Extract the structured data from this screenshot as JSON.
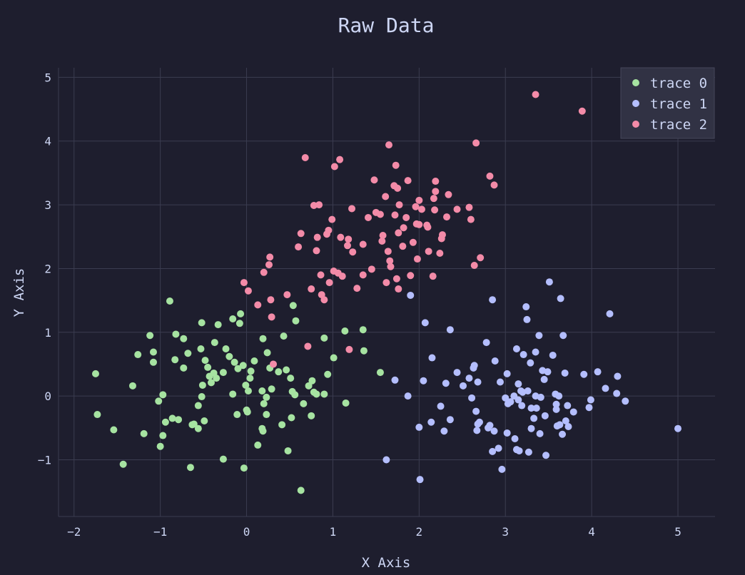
{
  "chart_data": {
    "type": "scatter",
    "title": "Raw Data",
    "xlabel": "X Axis",
    "ylabel": "Y Axis",
    "xlim": [
      -2.18,
      5.43
    ],
    "ylim": [
      -1.89,
      5.15
    ],
    "xticks": [
      -2,
      -1,
      0,
      1,
      2,
      3,
      4,
      5
    ],
    "yticks": [
      -1,
      0,
      1,
      2,
      3,
      4,
      5
    ],
    "xtick_labels": [
      "−2",
      "−1",
      "0",
      "1",
      "2",
      "3",
      "4",
      "5"
    ],
    "ytick_labels": [
      "−1",
      "0",
      "1",
      "2",
      "3",
      "4",
      "5"
    ],
    "grid": true,
    "legend_position": "top-right",
    "background": "#1e1e2e",
    "series": [
      {
        "name": "trace 0",
        "color": "#a6e3a1",
        "points": [
          [
            -1.75,
            0.35
          ],
          [
            -1.73,
            -0.29
          ],
          [
            -1.54,
            -0.53
          ],
          [
            -1.43,
            -1.07
          ],
          [
            -1.32,
            0.16
          ],
          [
            -1.26,
            0.65
          ],
          [
            -1.19,
            -0.59
          ],
          [
            -1.12,
            0.95
          ],
          [
            -1.08,
            0.69
          ],
          [
            -1.08,
            0.53
          ],
          [
            -1.02,
            -0.08
          ],
          [
            -0.97,
            0.02
          ],
          [
            -1.0,
            -0.79
          ],
          [
            -0.97,
            -0.62
          ],
          [
            -0.94,
            -0.41
          ],
          [
            -0.89,
            1.49
          ],
          [
            -0.86,
            -0.35
          ],
          [
            -0.83,
            0.57
          ],
          [
            -0.82,
            0.97
          ],
          [
            -0.79,
            -0.37
          ],
          [
            -0.73,
            0.9
          ],
          [
            -0.73,
            0.44
          ],
          [
            -0.68,
            0.67
          ],
          [
            -0.65,
            -1.12
          ],
          [
            -0.63,
            -0.45
          ],
          [
            -0.61,
            -0.44
          ],
          [
            -0.56,
            -0.15
          ],
          [
            -0.56,
            -0.51
          ],
          [
            -0.53,
            0.74
          ],
          [
            -0.52,
            -0.01
          ],
          [
            -0.51,
            0.17
          ],
          [
            -0.49,
            -0.39
          ],
          [
            -0.48,
            0.56
          ],
          [
            -0.45,
            0.45
          ],
          [
            -0.43,
            0.31
          ],
          [
            -0.41,
            0.21
          ],
          [
            -0.38,
            0.36
          ],
          [
            -0.37,
            0.84
          ],
          [
            -0.35,
            0.28
          ],
          [
            -0.33,
            1.12
          ],
          [
            -0.52,
            1.15
          ],
          [
            -0.27,
            -0.99
          ],
          [
            -0.27,
            0.37
          ],
          [
            -0.24,
            0.74
          ],
          [
            -0.2,
            0.62
          ],
          [
            -0.16,
            0.03
          ],
          [
            -0.16,
            1.21
          ],
          [
            -0.14,
            0.53
          ],
          [
            -0.11,
            -0.29
          ],
          [
            -0.1,
            0.43
          ],
          [
            -0.08,
            1.14
          ],
          [
            -0.07,
            1.29
          ],
          [
            -0.04,
            0.48
          ],
          [
            -0.03,
            -1.13
          ],
          [
            -0.01,
            0.17
          ],
          [
            0.0,
            -0.22
          ],
          [
            0.01,
            -0.25
          ],
          [
            0.04,
            0.28
          ],
          [
            0.02,
            0.08
          ],
          [
            0.05,
            0.39
          ],
          [
            0.09,
            0.55
          ],
          [
            0.13,
            -0.77
          ],
          [
            0.18,
            0.08
          ],
          [
            0.19,
            0.9
          ],
          [
            0.2,
            -0.12
          ],
          [
            0.18,
            -0.51
          ],
          [
            0.19,
            -0.55
          ],
          [
            0.23,
            -0.02
          ],
          [
            0.23,
            -0.29
          ],
          [
            0.24,
            0.68
          ],
          [
            0.27,
            0.44
          ],
          [
            0.29,
            0.11
          ],
          [
            0.37,
            0.38
          ],
          [
            0.41,
            -0.45
          ],
          [
            0.43,
            0.94
          ],
          [
            0.46,
            0.41
          ],
          [
            0.48,
            -0.86
          ],
          [
            0.51,
            0.28
          ],
          [
            0.52,
            -0.34
          ],
          [
            0.53,
            0.07
          ],
          [
            0.54,
            1.42
          ],
          [
            0.56,
            0.02
          ],
          [
            0.57,
            1.18
          ],
          [
            0.66,
            -0.12
          ],
          [
            0.63,
            -1.48
          ],
          [
            0.72,
            0.16
          ],
          [
            0.75,
            -0.31
          ],
          [
            0.76,
            0.24
          ],
          [
            0.78,
            0.06
          ],
          [
            0.81,
            0.03
          ],
          [
            0.9,
            0.03
          ],
          [
            0.9,
            0.91
          ],
          [
            0.94,
            0.34
          ],
          [
            1.01,
            0.6
          ],
          [
            1.14,
            1.02
          ],
          [
            1.15,
            -0.11
          ],
          [
            1.35,
            1.04
          ],
          [
            1.36,
            0.71
          ],
          [
            1.55,
            0.37
          ]
        ]
      },
      {
        "name": "trace 1",
        "color": "#b4befe",
        "points": [
          [
            1.9,
            1.58
          ],
          [
            2.07,
            1.15
          ],
          [
            1.72,
            0.25
          ],
          [
            1.87,
            0.0
          ],
          [
            1.62,
            -1.0
          ],
          [
            2.01,
            -1.31
          ],
          [
            2.0,
            -0.49
          ],
          [
            2.05,
            0.24
          ],
          [
            2.14,
            -0.41
          ],
          [
            2.15,
            0.6
          ],
          [
            2.25,
            -0.16
          ],
          [
            2.29,
            -0.55
          ],
          [
            2.31,
            0.2
          ],
          [
            2.36,
            1.04
          ],
          [
            2.36,
            -0.37
          ],
          [
            2.44,
            0.37
          ],
          [
            2.51,
            0.16
          ],
          [
            2.58,
            0.28
          ],
          [
            2.61,
            -0.03
          ],
          [
            2.63,
            0.44
          ],
          [
            2.64,
            0.48
          ],
          [
            2.66,
            -0.24
          ],
          [
            2.67,
            -0.54
          ],
          [
            2.68,
            -0.44
          ],
          [
            2.68,
            0.22
          ],
          [
            2.7,
            -0.41
          ],
          [
            2.78,
            0.84
          ],
          [
            2.8,
            -0.5
          ],
          [
            2.82,
            -0.46
          ],
          [
            2.85,
            -0.87
          ],
          [
            2.85,
            1.51
          ],
          [
            2.88,
            0.55
          ],
          [
            2.87,
            -0.55
          ],
          [
            2.92,
            -0.82
          ],
          [
            2.94,
            0.22
          ],
          [
            2.96,
            -1.15
          ],
          [
            3.0,
            -0.03
          ],
          [
            3.02,
            0.35
          ],
          [
            3.02,
            -0.58
          ],
          [
            3.03,
            -0.12
          ],
          [
            3.06,
            -0.09
          ],
          [
            3.1,
            0.0
          ],
          [
            3.11,
            -0.67
          ],
          [
            3.13,
            0.74
          ],
          [
            3.13,
            -0.84
          ],
          [
            3.15,
            0.19
          ],
          [
            3.15,
            -0.06
          ],
          [
            3.18,
            0.08
          ],
          [
            3.2,
            0.06
          ],
          [
            3.19,
            -0.15
          ],
          [
            3.21,
            0.65
          ],
          [
            3.24,
            1.4
          ],
          [
            3.25,
            1.2
          ],
          [
            3.26,
            0.08
          ],
          [
            3.29,
            0.52
          ],
          [
            3.3,
            -0.19
          ],
          [
            3.3,
            -0.51
          ],
          [
            3.33,
            -0.35
          ],
          [
            3.35,
            0.0
          ],
          [
            3.35,
            0.69
          ],
          [
            3.36,
            -0.19
          ],
          [
            3.39,
            0.95
          ],
          [
            3.41,
            -0.02
          ],
          [
            3.43,
            0.4
          ],
          [
            3.45,
            0.26
          ],
          [
            3.46,
            -0.31
          ],
          [
            3.47,
            -0.93
          ],
          [
            3.49,
            0.38
          ],
          [
            3.51,
            1.79
          ],
          [
            3.55,
            0.64
          ],
          [
            3.58,
            0.03
          ],
          [
            3.59,
            -0.21
          ],
          [
            3.59,
            -0.13
          ],
          [
            3.6,
            -0.47
          ],
          [
            3.62,
            0.0
          ],
          [
            3.63,
            -0.45
          ],
          [
            3.64,
            1.53
          ],
          [
            3.66,
            -0.6
          ],
          [
            3.67,
            0.95
          ],
          [
            3.69,
            0.36
          ],
          [
            3.7,
            -0.39
          ],
          [
            3.72,
            -0.15
          ],
          [
            3.73,
            -0.48
          ],
          [
            3.79,
            -0.25
          ],
          [
            3.91,
            0.34
          ],
          [
            3.97,
            -0.18
          ],
          [
            3.99,
            -0.06
          ],
          [
            4.07,
            0.38
          ],
          [
            4.16,
            0.12
          ],
          [
            4.21,
            1.29
          ],
          [
            4.29,
            0.04
          ],
          [
            4.3,
            0.31
          ],
          [
            4.39,
            -0.08
          ],
          [
            5.0,
            -0.51
          ],
          [
            3.4,
            -0.59
          ],
          [
            3.27,
            -0.88
          ],
          [
            3.16,
            -0.86
          ]
        ]
      },
      {
        "name": "trace 2",
        "color": "#f38ba8",
        "points": [
          [
            -0.03,
            1.78
          ],
          [
            0.02,
            1.65
          ],
          [
            0.13,
            1.43
          ],
          [
            0.2,
            1.94
          ],
          [
            0.26,
            2.06
          ],
          [
            0.27,
            2.18
          ],
          [
            0.28,
            1.51
          ],
          [
            0.29,
            1.24
          ],
          [
            0.31,
            0.5
          ],
          [
            0.47,
            1.59
          ],
          [
            0.6,
            2.34
          ],
          [
            0.63,
            2.55
          ],
          [
            0.68,
            3.74
          ],
          [
            0.71,
            0.78
          ],
          [
            0.75,
            1.68
          ],
          [
            0.78,
            2.99
          ],
          [
            0.81,
            2.28
          ],
          [
            0.82,
            2.49
          ],
          [
            0.84,
            3.0
          ],
          [
            0.86,
            1.9
          ],
          [
            0.87,
            1.59
          ],
          [
            0.9,
            1.51
          ],
          [
            0.93,
            2.54
          ],
          [
            0.95,
            2.6
          ],
          [
            0.96,
            1.78
          ],
          [
            0.99,
            2.77
          ],
          [
            1.01,
            1.96
          ],
          [
            1.02,
            3.6
          ],
          [
            1.06,
            1.93
          ],
          [
            1.08,
            3.71
          ],
          [
            1.09,
            2.49
          ],
          [
            1.11,
            1.88
          ],
          [
            1.17,
            2.36
          ],
          [
            1.18,
            2.46
          ],
          [
            1.19,
            0.73
          ],
          [
            1.22,
            2.94
          ],
          [
            1.23,
            2.26
          ],
          [
            1.28,
            1.69
          ],
          [
            1.35,
            1.9
          ],
          [
            1.41,
            2.8
          ],
          [
            1.45,
            1.99
          ],
          [
            1.48,
            3.39
          ],
          [
            1.5,
            2.88
          ],
          [
            1.55,
            2.85
          ],
          [
            1.61,
            3.13
          ],
          [
            1.62,
            1.78
          ],
          [
            1.66,
            2.12
          ],
          [
            1.67,
            2.03
          ],
          [
            1.65,
            3.94
          ],
          [
            1.73,
            3.62
          ],
          [
            1.71,
            3.3
          ],
          [
            1.72,
            2.84
          ],
          [
            1.74,
            1.84
          ],
          [
            1.75,
            3.26
          ],
          [
            1.76,
            1.68
          ],
          [
            1.76,
            2.56
          ],
          [
            1.77,
            3.0
          ],
          [
            1.81,
            2.35
          ],
          [
            1.82,
            2.64
          ],
          [
            1.85,
            2.8
          ],
          [
            1.87,
            3.38
          ],
          [
            1.9,
            1.89
          ],
          [
            1.93,
            2.41
          ],
          [
            1.97,
            2.7
          ],
          [
            1.98,
            2.15
          ],
          [
            2.0,
            3.07
          ],
          [
            2.0,
            2.69
          ],
          [
            2.03,
            2.93
          ],
          [
            2.09,
            2.68
          ],
          [
            2.11,
            2.27
          ],
          [
            2.16,
            1.88
          ],
          [
            2.18,
            2.92
          ],
          [
            2.19,
            3.37
          ],
          [
            2.19,
            3.21
          ],
          [
            2.24,
            2.24
          ],
          [
            2.26,
            2.47
          ],
          [
            2.27,
            2.53
          ],
          [
            2.32,
            2.81
          ],
          [
            2.34,
            3.16
          ],
          [
            2.44,
            2.93
          ],
          [
            2.58,
            2.96
          ],
          [
            2.6,
            2.77
          ],
          [
            2.64,
            2.05
          ],
          [
            2.66,
            3.97
          ],
          [
            2.71,
            2.17
          ],
          [
            2.82,
            3.45
          ],
          [
            2.87,
            3.31
          ],
          [
            3.35,
            4.73
          ],
          [
            3.89,
            4.47
          ],
          [
            1.96,
            2.97
          ],
          [
            2.1,
            2.65
          ],
          [
            1.35,
            2.38
          ],
          [
            2.17,
            3.1
          ],
          [
            1.57,
            2.43
          ],
          [
            1.58,
            2.52
          ],
          [
            1.64,
            2.27
          ]
        ]
      }
    ]
  },
  "legend": {
    "background": "#313244",
    "items": [
      "trace 0",
      "trace 1",
      "trace 2"
    ]
  }
}
